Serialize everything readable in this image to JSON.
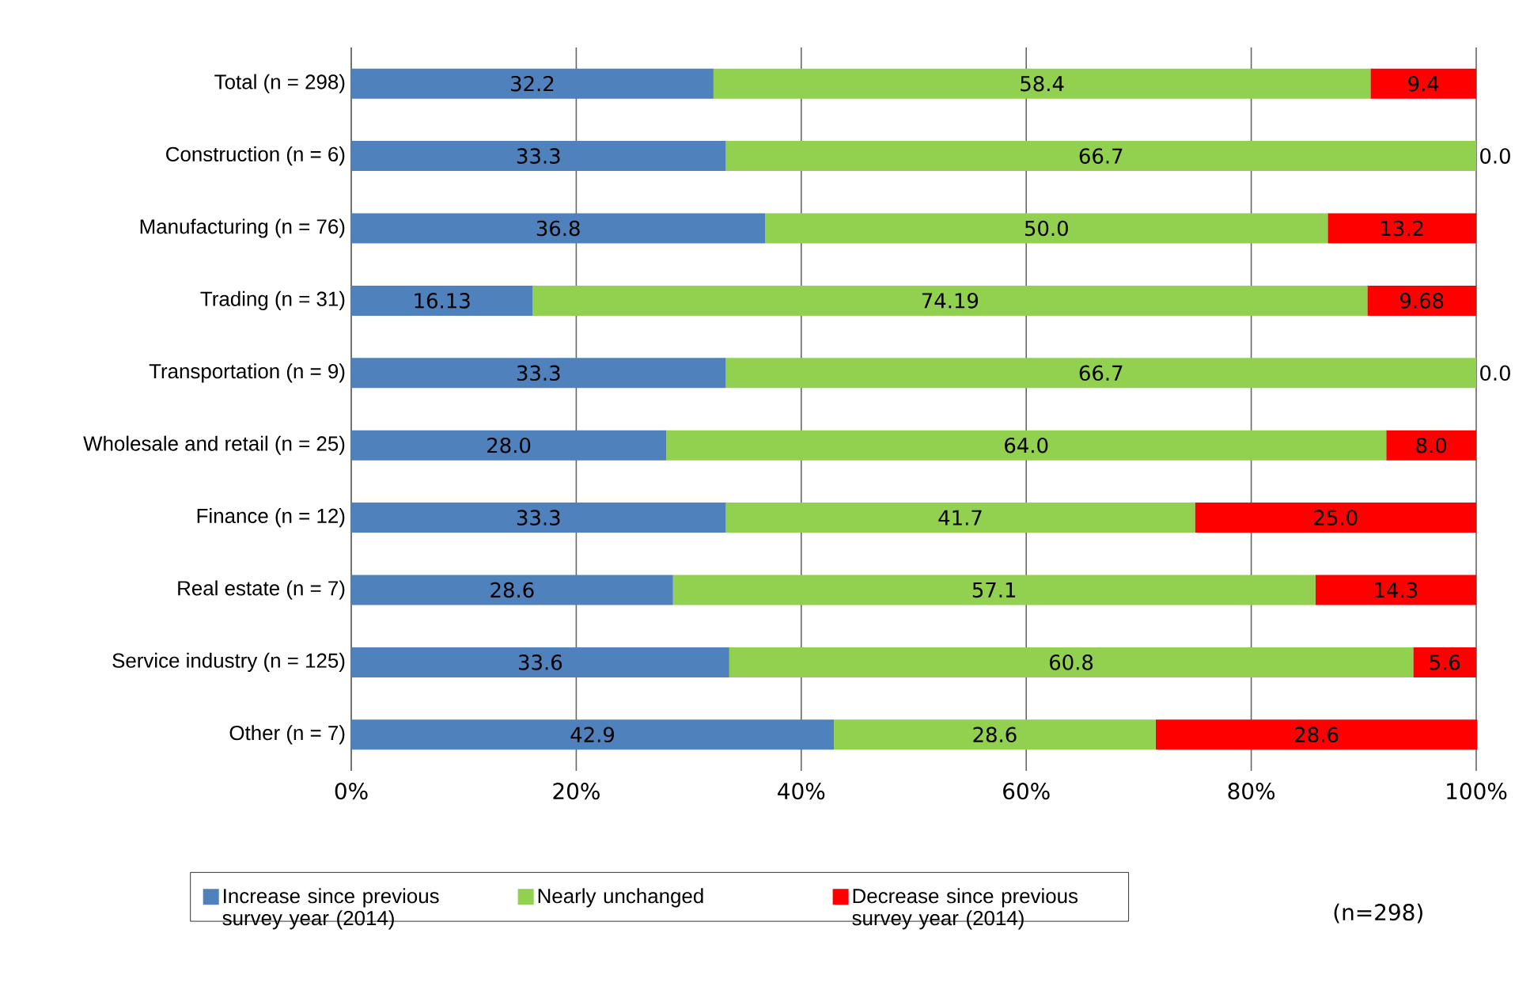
{
  "chart_data": {
    "type": "bar",
    "orientation": "horizontal",
    "stacked": true,
    "categories": [
      "Total (n = 298)",
      "Construction (n = 6)",
      "Manufacturing (n = 76)",
      "Trading (n = 31)",
      "Transportation (n = 9)",
      "Wholesale and retail (n = 25)",
      "Finance (n = 12)",
      "Real estate (n = 7)",
      "Service industry (n = 125)",
      "Other (n = 7)"
    ],
    "series": [
      {
        "name": "Increase since previous survey year (2014)",
        "color": "#4f81bd",
        "values": [
          32.2,
          33.3,
          36.8,
          16.13,
          33.3,
          28.0,
          33.3,
          28.6,
          33.6,
          42.9
        ],
        "value_labels": [
          "32.2",
          "33.3",
          "36.8",
          "16.13",
          "33.3",
          "28.0",
          "33.3",
          "28.6",
          "33.6",
          "42.9"
        ]
      },
      {
        "name": "Nearly unchanged",
        "color": "#92d050",
        "values": [
          58.4,
          66.7,
          50.0,
          74.19,
          66.7,
          64.0,
          41.7,
          57.1,
          60.8,
          28.6
        ],
        "value_labels": [
          "58.4",
          "66.7",
          "50.0",
          "74.19",
          "66.7",
          "64.0",
          "41.7",
          "57.1",
          "60.8",
          "28.6"
        ]
      },
      {
        "name": "Decrease since previous survey year (2014)",
        "color": "#ff0000",
        "values": [
          9.4,
          0.0,
          13.2,
          9.68,
          0.0,
          8.0,
          25.0,
          14.3,
          5.6,
          28.6
        ],
        "value_labels": [
          "9.4",
          "0.0",
          "13.2",
          "9.68",
          "0.0",
          "8.0",
          "25.0",
          "14.3",
          "5.6",
          "28.6"
        ]
      }
    ],
    "xlim": [
      0,
      100
    ],
    "xticks": [
      {
        "value": 0,
        "label": "0%"
      },
      {
        "value": 20,
        "label": "20%"
      },
      {
        "value": 40,
        "label": "40%"
      },
      {
        "value": 60,
        "label": "60%"
      },
      {
        "value": 80,
        "label": "80%"
      },
      {
        "value": 100,
        "label": "100%"
      }
    ],
    "grid": "x",
    "legend": "bottom",
    "annotations": [
      "(n=298)"
    ]
  }
}
